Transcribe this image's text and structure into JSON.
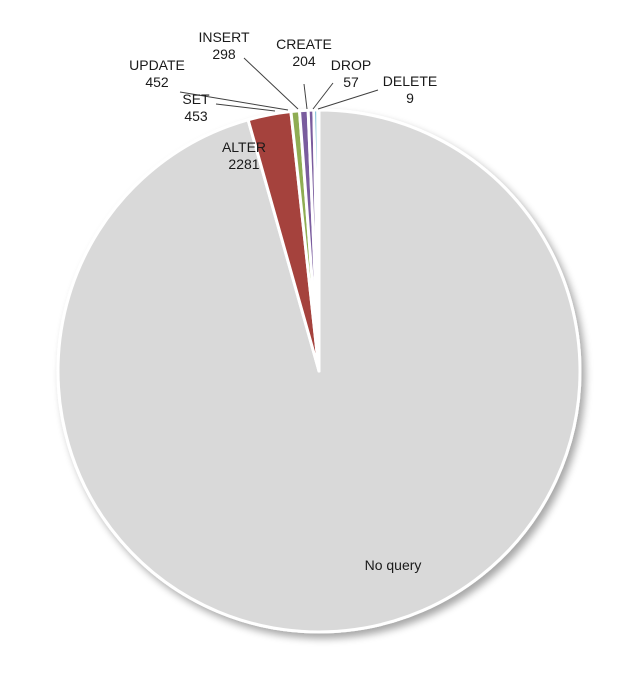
{
  "chart_data": {
    "type": "pie",
    "start_angle_deg": 90,
    "direction": "clockwise",
    "legend": "none",
    "slices": [
      {
        "label": "No query",
        "value": 82000,
        "value_label": "",
        "color": "#d9d9d9"
      },
      {
        "label": "ALTER",
        "value": 2281,
        "value_label": "2281",
        "color": "#a5423e"
      },
      {
        "label": "SET",
        "value": 453,
        "value_label": "453",
        "color": "#8fad52"
      },
      {
        "label": "UPDATE",
        "value": 452,
        "value_label": "452",
        "color": "#7a5c9e"
      },
      {
        "label": "INSERT",
        "value": 298,
        "value_label": "298",
        "color": "#7a5c9e"
      },
      {
        "label": "CREATE",
        "value": 204,
        "value_label": "204",
        "color": "#3f9fc2"
      },
      {
        "label": "DROP",
        "value": 57,
        "value_label": "57",
        "color": "#ee8a2e"
      },
      {
        "label": "DELETE",
        "value": 9,
        "value_label": "9",
        "color": "#4f81bd"
      }
    ]
  }
}
